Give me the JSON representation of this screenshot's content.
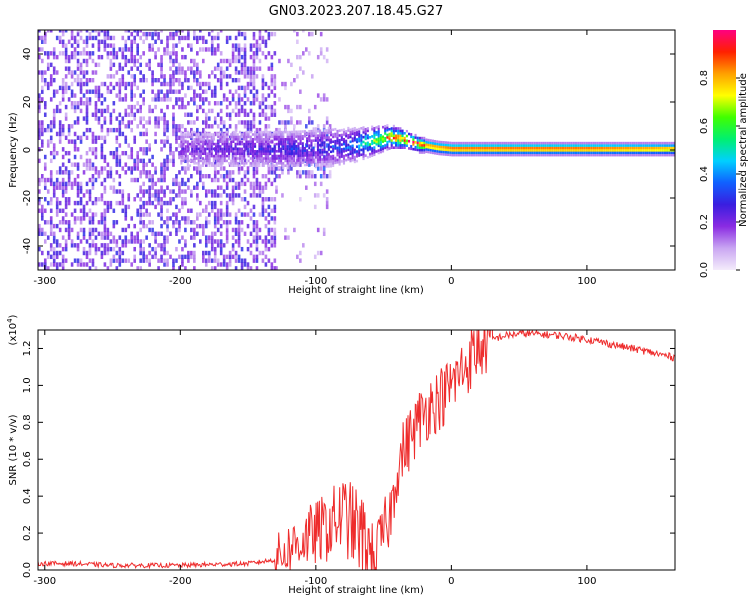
{
  "title": "GN03.2023.207.18.45.G27",
  "chart_data": [
    {
      "type": "heatmap",
      "xlabel": "Height of straight line (km)",
      "ylabel": "Frequency (Hz)",
      "xlim": [
        -305,
        165
      ],
      "ylim": [
        -50,
        50
      ],
      "xticks": [
        "-300",
        "-200",
        "-100",
        "0",
        "100"
      ],
      "xtick_values": [
        -300,
        -200,
        -100,
        0,
        100
      ],
      "yticks": [
        "-40",
        "-20",
        "0",
        "20",
        "40"
      ],
      "ytick_values": [
        -40,
        -20,
        0,
        20,
        40
      ],
      "colorbar": {
        "label": "Normalized spectral amplitude",
        "range": [
          0,
          1
        ],
        "ticks": [
          "0.0",
          "0.2",
          "0.4",
          "0.6",
          "0.8"
        ],
        "tick_values": [
          0.0,
          0.2,
          0.4,
          0.6,
          0.8
        ],
        "colors": [
          "#f4ecfb",
          "#c9a6f2",
          "#8a2be2",
          "#3a1ee0",
          "#1060ff",
          "#00d0ff",
          "#00f070",
          "#40ff00",
          "#ffff00",
          "#ffa000",
          "#ff2000",
          "#ff0080"
        ]
      },
      "signal_track": [
        {
          "x": -200,
          "freq": 0,
          "amp": 0.2
        },
        {
          "x": -150,
          "freq": 0,
          "amp": 0.25
        },
        {
          "x": -120,
          "freq": 0,
          "amp": 0.3
        },
        {
          "x": -100,
          "freq": 0.5,
          "amp": 0.3
        },
        {
          "x": -80,
          "freq": 1,
          "amp": 0.35
        },
        {
          "x": -60,
          "freq": 3,
          "amp": 0.6
        },
        {
          "x": -45,
          "freq": 5,
          "amp": 0.85
        },
        {
          "x": -35,
          "freq": 4,
          "amp": 0.9
        },
        {
          "x": -25,
          "freq": 2,
          "amp": 0.95
        },
        {
          "x": -10,
          "freq": 0.5,
          "amp": 0.95
        },
        {
          "x": 0,
          "freq": 0,
          "amp": 1.0
        },
        {
          "x": 50,
          "freq": 0,
          "amp": 1.0
        },
        {
          "x": 100,
          "freq": 0,
          "amp": 1.0
        },
        {
          "x": 150,
          "freq": 0,
          "amp": 0.95
        },
        {
          "x": 165,
          "freq": 0,
          "amp": 0.9
        }
      ]
    },
    {
      "type": "line",
      "xlabel": "Height of straight line (km)",
      "ylabel": "SNR (10 * v/v)",
      "multiplier": "(x10",
      "multiplier_exp": "4",
      "multiplier_close": ")",
      "xlim": [
        -305,
        165
      ],
      "ylim": [
        0,
        1.3
      ],
      "xticks": [
        "-300",
        "-200",
        "-100",
        "0",
        "100"
      ],
      "xtick_values": [
        -300,
        -200,
        -100,
        0,
        100
      ],
      "yticks": [
        "0.0",
        "0.2",
        "0.4",
        "0.6",
        "0.8",
        "1.0",
        "1.2"
      ],
      "ytick_values": [
        0.0,
        0.2,
        0.4,
        0.6,
        0.8,
        1.0,
        1.2
      ],
      "series": [
        {
          "color": "#ee2c2c",
          "x": [
            -305,
            -280,
            -250,
            -200,
            -150,
            -130,
            -120,
            -110,
            -100,
            -90,
            -80,
            -70,
            -60,
            -55,
            -50,
            -45,
            -40,
            -35,
            -30,
            -25,
            -20,
            -15,
            -10,
            -5,
            0,
            5,
            10,
            15,
            20,
            25,
            30,
            40,
            50,
            60,
            80,
            100,
            120,
            140,
            165
          ],
          "y": [
            0.03,
            0.03,
            0.02,
            0.02,
            0.03,
            0.05,
            0.1,
            0.15,
            0.18,
            0.22,
            0.28,
            0.2,
            0.08,
            0.1,
            0.2,
            0.3,
            0.55,
            0.65,
            0.72,
            0.8,
            0.85,
            0.9,
            0.92,
            0.95,
            1.0,
            1.05,
            1.1,
            1.15,
            1.2,
            1.22,
            1.25,
            1.27,
            1.28,
            1.28,
            1.27,
            1.25,
            1.22,
            1.19,
            1.15
          ]
        }
      ]
    }
  ]
}
